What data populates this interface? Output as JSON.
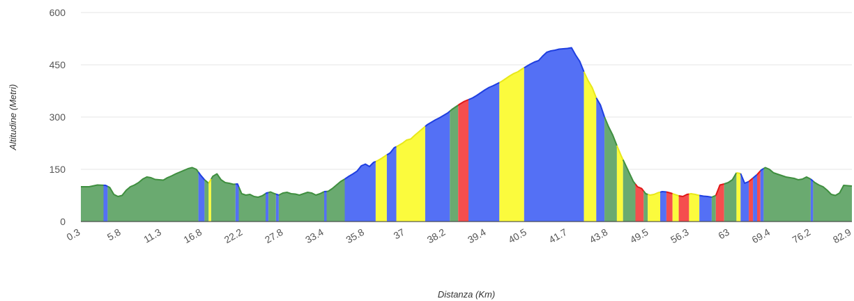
{
  "chart_data": {
    "type": "area",
    "xlabel": "Distanza (Km)",
    "ylabel": "Altitudine (Metri)",
    "ylim": [
      0,
      600
    ],
    "yticks": [
      "0",
      "150",
      "300",
      "450",
      "600"
    ],
    "xticks": [
      "0.3",
      "5.8",
      "11.3",
      "16.8",
      "22.2",
      "27.8",
      "33.4",
      "35.8",
      "37",
      "38.2",
      "39.4",
      "40.5",
      "41.7",
      "43.8",
      "49.5",
      "56.3",
      "63",
      "69.4",
      "76.2",
      "82.9"
    ],
    "grid": true,
    "legend": "none",
    "gradient_colors": {
      "green": "#6aaa70",
      "blue": "#5470f5",
      "yellow": "#fbfb3d",
      "red": "#f54e4e"
    },
    "line_colors": {
      "green": "#3f8f3f",
      "blue": "#1f3fe0",
      "yellow": "#e8e81a",
      "red": "#e01818"
    },
    "profile": [
      [
        0,
        100
      ],
      [
        2,
        100
      ],
      [
        4,
        105
      ],
      [
        6,
        104
      ],
      [
        7,
        98
      ],
      [
        8,
        78
      ],
      [
        9,
        72
      ],
      [
        10,
        75
      ],
      [
        11,
        90
      ],
      [
        12,
        100
      ],
      [
        13,
        105
      ],
      [
        14,
        112
      ],
      [
        15,
        122
      ],
      [
        16,
        128
      ],
      [
        17,
        126
      ],
      [
        18,
        121
      ],
      [
        19,
        120
      ],
      [
        20,
        119
      ],
      [
        21,
        126
      ],
      [
        22,
        131
      ],
      [
        23,
        137
      ],
      [
        24,
        142
      ],
      [
        25,
        147
      ],
      [
        26,
        152
      ],
      [
        27,
        155
      ],
      [
        28,
        150
      ],
      [
        29,
        134
      ],
      [
        30,
        120
      ],
      [
        31,
        110
      ],
      [
        32,
        130
      ],
      [
        33,
        137
      ],
      [
        34,
        120
      ],
      [
        35,
        112
      ],
      [
        36,
        110
      ],
      [
        37,
        107
      ],
      [
        38,
        108
      ],
      [
        39,
        80
      ],
      [
        40,
        76
      ],
      [
        41,
        78
      ],
      [
        42,
        72
      ],
      [
        43,
        70
      ],
      [
        44,
        74
      ],
      [
        45,
        82
      ],
      [
        46,
        85
      ],
      [
        47,
        80
      ],
      [
        48,
        76
      ],
      [
        49,
        82
      ],
      [
        50,
        84
      ],
      [
        51,
        80
      ],
      [
        52,
        79
      ],
      [
        53,
        76
      ],
      [
        54,
        80
      ],
      [
        55,
        84
      ],
      [
        56,
        82
      ],
      [
        57,
        76
      ],
      [
        58,
        80
      ],
      [
        59,
        86
      ],
      [
        60,
        87
      ],
      [
        61,
        95
      ],
      [
        62,
        105
      ],
      [
        63,
        115
      ],
      [
        64,
        122
      ],
      [
        65,
        130
      ],
      [
        66,
        137
      ],
      [
        67,
        145
      ],
      [
        68,
        160
      ],
      [
        69,
        165
      ],
      [
        70,
        158
      ],
      [
        71,
        170
      ],
      [
        72,
        175
      ],
      [
        73,
        182
      ],
      [
        74,
        190
      ],
      [
        75,
        197
      ],
      [
        76,
        212
      ],
      [
        77,
        218
      ],
      [
        78,
        225
      ],
      [
        79,
        234
      ],
      [
        80,
        237
      ],
      [
        81,
        248
      ],
      [
        82,
        258
      ],
      [
        83,
        268
      ],
      [
        84,
        278
      ],
      [
        85,
        285
      ],
      [
        86,
        292
      ],
      [
        87,
        298
      ],
      [
        88,
        305
      ],
      [
        89,
        312
      ],
      [
        90,
        322
      ],
      [
        91,
        330
      ],
      [
        92,
        338
      ],
      [
        93,
        345
      ],
      [
        94,
        350
      ],
      [
        95,
        355
      ],
      [
        96,
        362
      ],
      [
        97,
        370
      ],
      [
        98,
        378
      ],
      [
        99,
        385
      ],
      [
        100,
        390
      ],
      [
        101,
        396
      ],
      [
        102,
        402
      ],
      [
        103,
        410
      ],
      [
        104,
        418
      ],
      [
        105,
        425
      ],
      [
        106,
        430
      ],
      [
        107,
        438
      ],
      [
        108,
        445
      ],
      [
        109,
        452
      ],
      [
        110,
        458
      ],
      [
        111,
        462
      ],
      [
        112,
        475
      ],
      [
        113,
        486
      ],
      [
        114,
        490
      ],
      [
        115,
        492
      ],
      [
        116,
        495
      ],
      [
        117,
        496
      ],
      [
        118,
        497
      ],
      [
        119,
        499
      ],
      [
        120,
        478
      ],
      [
        121,
        460
      ],
      [
        122,
        430
      ],
      [
        123,
        405
      ],
      [
        124,
        385
      ],
      [
        125,
        355
      ],
      [
        126,
        335
      ],
      [
        127,
        300
      ],
      [
        128,
        272
      ],
      [
        129,
        248
      ],
      [
        130,
        218
      ],
      [
        131,
        190
      ],
      [
        132,
        165
      ],
      [
        133,
        140
      ],
      [
        134,
        115
      ],
      [
        135,
        100
      ],
      [
        136,
        95
      ],
      [
        137,
        80
      ],
      [
        138,
        76
      ],
      [
        139,
        78
      ],
      [
        140,
        83
      ],
      [
        141,
        86
      ],
      [
        142,
        85
      ],
      [
        143,
        82
      ],
      [
        144,
        78
      ],
      [
        145,
        74
      ],
      [
        146,
        72
      ],
      [
        147,
        78
      ],
      [
        148,
        80
      ],
      [
        149,
        78
      ],
      [
        150,
        75
      ],
      [
        151,
        73
      ],
      [
        152,
        72
      ],
      [
        153,
        70
      ],
      [
        154,
        75
      ],
      [
        155,
        105
      ],
      [
        156,
        108
      ],
      [
        157,
        112
      ],
      [
        158,
        120
      ],
      [
        159,
        140
      ],
      [
        160,
        138
      ],
      [
        161,
        110
      ],
      [
        162,
        115
      ],
      [
        163,
        125
      ],
      [
        164,
        135
      ],
      [
        165,
        148
      ],
      [
        166,
        155
      ],
      [
        167,
        150
      ],
      [
        168,
        140
      ],
      [
        169,
        136
      ],
      [
        170,
        132
      ],
      [
        171,
        128
      ],
      [
        172,
        126
      ],
      [
        173,
        124
      ],
      [
        174,
        120
      ],
      [
        175,
        122
      ],
      [
        176,
        128
      ],
      [
        177,
        122
      ],
      [
        178,
        112
      ],
      [
        179,
        105
      ],
      [
        180,
        100
      ],
      [
        181,
        90
      ],
      [
        182,
        78
      ],
      [
        183,
        75
      ],
      [
        184,
        82
      ],
      [
        185,
        104
      ],
      [
        186,
        103
      ],
      [
        187,
        102
      ]
    ],
    "segments": [
      [
        0,
        "green"
      ],
      [
        5.5,
        "blue"
      ],
      [
        6.5,
        "green"
      ],
      [
        28.5,
        "blue"
      ],
      [
        30,
        "green"
      ],
      [
        31,
        "yellow"
      ],
      [
        31.6,
        "green"
      ],
      [
        37.5,
        "blue"
      ],
      [
        38.3,
        "green"
      ],
      [
        44.8,
        "blue"
      ],
      [
        45.5,
        "green"
      ],
      [
        47.3,
        "blue"
      ],
      [
        48,
        "green"
      ],
      [
        59,
        "blue"
      ],
      [
        59.6,
        "green"
      ],
      [
        64,
        "blue"
      ],
      [
        71.5,
        "yellow"
      ],
      [
        74.2,
        "blue"
      ],
      [
        76.5,
        "yellow"
      ],
      [
        83.5,
        "blue"
      ],
      [
        89.5,
        "green"
      ],
      [
        91.5,
        "red"
      ],
      [
        94,
        "blue"
      ],
      [
        101.5,
        "yellow"
      ],
      [
        107.5,
        "blue"
      ],
      [
        122,
        "yellow"
      ],
      [
        125,
        "blue"
      ],
      [
        127,
        "green"
      ],
      [
        130,
        "yellow"
      ],
      [
        131.5,
        "green"
      ],
      [
        134.5,
        "red"
      ],
      [
        136.5,
        "green"
      ],
      [
        137.5,
        "yellow"
      ],
      [
        140.5,
        "blue"
      ],
      [
        142,
        "red"
      ],
      [
        143.5,
        "yellow"
      ],
      [
        145,
        "red"
      ],
      [
        147.5,
        "yellow"
      ],
      [
        150,
        "blue"
      ],
      [
        153,
        "green"
      ],
      [
        154,
        "red"
      ],
      [
        156,
        "green"
      ],
      [
        159,
        "yellow"
      ],
      [
        160,
        "blue"
      ],
      [
        162,
        "red"
      ],
      [
        163,
        "blue"
      ],
      [
        164,
        "red"
      ],
      [
        164.8,
        "blue"
      ],
      [
        165.6,
        "green"
      ],
      [
        177,
        "blue"
      ],
      [
        177.6,
        "green"
      ],
      [
        187,
        "green"
      ]
    ]
  }
}
